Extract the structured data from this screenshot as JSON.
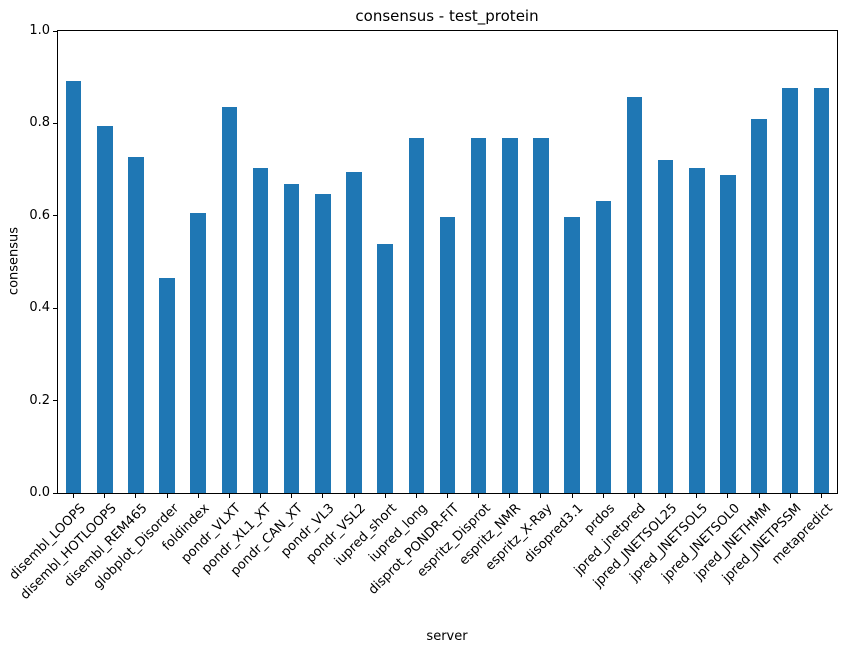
{
  "chart_data": {
    "type": "bar",
    "title": "consensus - test_protein",
    "xlabel": "server",
    "ylabel": "consensus",
    "ylim": [
      0.0,
      1.0
    ],
    "ytick_labels": [
      "0.0",
      "0.2",
      "0.4",
      "0.6",
      "0.8",
      "1.0"
    ],
    "ytick_values": [
      0.0,
      0.2,
      0.4,
      0.6,
      0.8,
      1.0
    ],
    "grid": false,
    "legend_position": "none",
    "x_tick_rotation_deg": 45,
    "bar_color": "#1f77b4",
    "frame_color": "#000000",
    "background_color": "#ffffff",
    "categories": [
      "disembl_LOOPS",
      "disembl_HOTLOOPS",
      "disembl_REM465",
      "globplot_Disorder",
      "foldindex",
      "pondr_VLXT",
      "pondr_XL1_XT",
      "pondr_CAN_XT",
      "pondr_VL3",
      "pondr_VSL2",
      "iupred_short",
      "iupred_long",
      "disprot_PONDR-FIT",
      "espritz_Disprot",
      "espritz_NMR",
      "espritz_X-Ray",
      "disopred3.1",
      "prdos",
      "jpred_jnetpred",
      "jpred_JNETSOL25",
      "jpred_JNETSOL5",
      "jpred_JNETSOL0",
      "jpred_JNETHMM",
      "jpred_JNETPSSM",
      "metapredict"
    ],
    "values": [
      0.892,
      0.795,
      0.727,
      0.466,
      0.607,
      0.835,
      0.703,
      0.669,
      0.647,
      0.694,
      0.538,
      0.769,
      0.597,
      0.769,
      0.769,
      0.769,
      0.597,
      0.631,
      0.858,
      0.72,
      0.703,
      0.689,
      0.809,
      0.876,
      0.876
    ]
  }
}
